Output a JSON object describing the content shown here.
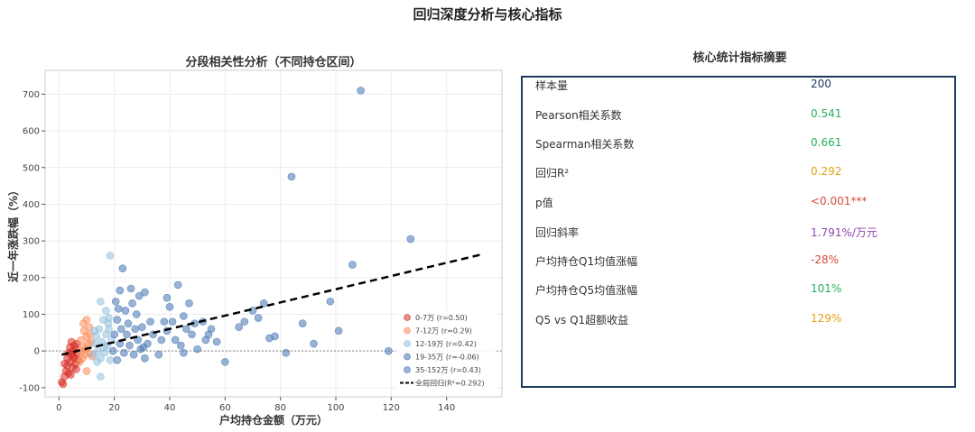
{
  "figure": {
    "title": "回归深度分析与核心指标"
  },
  "chart_data": {
    "type": "scatter",
    "title": "分段相关性分析（不同持仓区间）",
    "xlabel": "户均持仓金额（万元）",
    "ylabel": "近一年涨跌幅（%）",
    "xlim": [
      -5,
      160
    ],
    "ylim": [
      -125,
      765
    ],
    "x_ticks": [
      0,
      20,
      40,
      60,
      80,
      100,
      120,
      140
    ],
    "y_ticks": [
      -100,
      0,
      100,
      200,
      300,
      400,
      500,
      600,
      700
    ],
    "grid": true,
    "zero_line": 0,
    "legend_position": "lower-right",
    "series": [
      {
        "name": "0-7万 (r=0.50)",
        "color": "#d73027",
        "points": [
          [
            1.0,
            -85
          ],
          [
            1.5,
            -90
          ],
          [
            2.0,
            -70
          ],
          [
            2.5,
            -55
          ],
          [
            3.0,
            -40
          ],
          [
            3.0,
            -20
          ],
          [
            3.5,
            -60
          ],
          [
            4.0,
            -30
          ],
          [
            4.0,
            10
          ],
          [
            4.5,
            -10
          ],
          [
            4.5,
            25
          ],
          [
            5.0,
            -45
          ],
          [
            5.0,
            0
          ],
          [
            5.5,
            -20
          ],
          [
            5.5,
            15
          ],
          [
            6.0,
            -35
          ],
          [
            6.0,
            5
          ],
          [
            6.5,
            -5
          ],
          [
            6.5,
            20
          ],
          [
            7.0,
            -25
          ],
          [
            2.0,
            -35
          ],
          [
            3.5,
            -5
          ],
          [
            4.2,
            -65
          ],
          [
            5.2,
            -15
          ],
          [
            6.2,
            -50
          ]
        ]
      },
      {
        "name": "7-12万 (r=0.29)",
        "color": "#fc8d59",
        "points": [
          [
            7.5,
            -30
          ],
          [
            8.0,
            0
          ],
          [
            8.0,
            30
          ],
          [
            8.5,
            -20
          ],
          [
            9.0,
            10
          ],
          [
            9.0,
            55
          ],
          [
            9.5,
            -10
          ],
          [
            10.0,
            40
          ],
          [
            10.0,
            85
          ],
          [
            10.5,
            20
          ],
          [
            11.0,
            -5
          ],
          [
            11.0,
            65
          ],
          [
            11.5,
            25
          ],
          [
            12.0,
            -15
          ],
          [
            10.0,
            -55
          ],
          [
            8.8,
            75
          ],
          [
            9.7,
            5
          ],
          [
            11.2,
            45
          ]
        ]
      },
      {
        "name": "12-19万 (r=0.42)",
        "color": "#91bfdb",
        "points": [
          [
            12.5,
            -10
          ],
          [
            13.0,
            20
          ],
          [
            13.5,
            40
          ],
          [
            14.0,
            0
          ],
          [
            14.5,
            60
          ],
          [
            15.0,
            -20
          ],
          [
            15.0,
            135
          ],
          [
            15.5,
            25
          ],
          [
            16.0,
            85
          ],
          [
            16.5,
            -5
          ],
          [
            17.0,
            45
          ],
          [
            17.0,
            110
          ],
          [
            17.5,
            15
          ],
          [
            18.0,
            60
          ],
          [
            18.5,
            -25
          ],
          [
            18.0,
            90
          ],
          [
            19.0,
            30
          ],
          [
            18.5,
            260
          ],
          [
            15.0,
            -70
          ],
          [
            12.8,
            55
          ],
          [
            16.2,
            10
          ],
          [
            13.8,
            -30
          ],
          [
            17.8,
            75
          ]
        ]
      },
      {
        "name": "19-35万 (r=-0.06)",
        "color": "#4575b4",
        "points": [
          [
            19.5,
            0
          ],
          [
            20.0,
            45
          ],
          [
            20.5,
            135
          ],
          [
            21.0,
            -25
          ],
          [
            21.0,
            85
          ],
          [
            21.5,
            115
          ],
          [
            22.0,
            20
          ],
          [
            22.0,
            165
          ],
          [
            22.5,
            60
          ],
          [
            23.0,
            225
          ],
          [
            23.5,
            -5
          ],
          [
            24.0,
            110
          ],
          [
            24.5,
            45
          ],
          [
            25.0,
            75
          ],
          [
            25.5,
            15
          ],
          [
            26.0,
            170
          ],
          [
            27.0,
            -10
          ],
          [
            27.5,
            60
          ],
          [
            28.0,
            100
          ],
          [
            28.5,
            30
          ],
          [
            29.0,
            150
          ],
          [
            29.5,
            5
          ],
          [
            30.0,
            65
          ],
          [
            31.0,
            160
          ],
          [
            31.0,
            -20
          ],
          [
            32.0,
            20
          ],
          [
            33.0,
            80
          ],
          [
            34.0,
            45
          ],
          [
            30.5,
            10
          ],
          [
            26.5,
            130
          ]
        ]
      },
      {
        "name": "35-152万 (r=0.43)",
        "color": "#4575b4",
        "points": [
          [
            36,
            -10
          ],
          [
            37,
            30
          ],
          [
            38,
            80
          ],
          [
            39,
            55
          ],
          [
            40,
            120
          ],
          [
            41,
            80
          ],
          [
            42,
            30
          ],
          [
            43,
            180
          ],
          [
            44,
            15
          ],
          [
            45,
            95
          ],
          [
            46,
            60
          ],
          [
            47,
            130
          ],
          [
            48,
            45
          ],
          [
            49,
            75
          ],
          [
            50,
            5
          ],
          [
            52,
            80
          ],
          [
            53,
            30
          ],
          [
            55,
            60
          ],
          [
            57,
            25
          ],
          [
            60,
            -30
          ],
          [
            67,
            80
          ],
          [
            70,
            110
          ],
          [
            72,
            90
          ],
          [
            74,
            130
          ],
          [
            76,
            35
          ],
          [
            78,
            40
          ],
          [
            82,
            -5
          ],
          [
            84,
            475
          ],
          [
            88,
            75
          ],
          [
            92,
            20
          ],
          [
            98,
            135
          ],
          [
            101,
            55
          ],
          [
            106,
            235
          ],
          [
            109,
            710
          ],
          [
            119,
            0
          ],
          [
            127,
            305
          ],
          [
            54,
            45
          ],
          [
            65,
            65
          ],
          [
            39,
            145
          ],
          [
            45,
            -5
          ]
        ]
      }
    ],
    "fit": {
      "name": "全局回归(R²=0.292)",
      "x": [
        1,
        152
      ],
      "y": [
        -10,
        262
      ],
      "color": "#000000"
    }
  },
  "stats": {
    "title": "核心统计指标摘要",
    "rows": [
      {
        "label": "样本量",
        "value": "200",
        "color": "#1f3a5f"
      },
      {
        "label": "Pearson相关系数",
        "value": "0.541",
        "color": "#27ae60"
      },
      {
        "label": "Spearman相关系数",
        "value": "0.661",
        "color": "#27ae60"
      },
      {
        "label": "回归R²",
        "value": "0.292",
        "color": "#e6a118"
      },
      {
        "label": "p值",
        "value": "<0.001***",
        "color": "#d14b3b"
      },
      {
        "label": "回归斜率",
        "value": "1.791%/万元",
        "color": "#8e44ad"
      },
      {
        "label": "户均持仓Q1均值涨幅",
        "value": "-28%",
        "color": "#d14b3b"
      },
      {
        "label": "户均持仓Q5均值涨幅",
        "value": "101%",
        "color": "#27ae60"
      },
      {
        "label": "Q5 vs Q1超额收益",
        "value": "129%",
        "color": "#e6a118"
      }
    ]
  }
}
